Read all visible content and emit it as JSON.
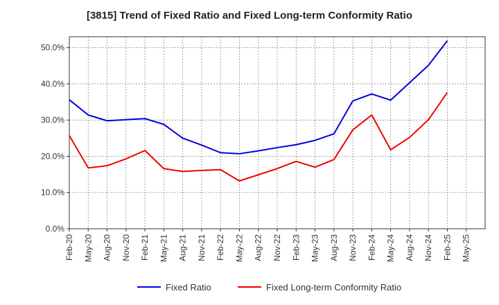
{
  "chart_data": {
    "type": "line",
    "title": "[3815]  Trend of Fixed Ratio and Fixed Long-term Conformity Ratio",
    "xlabel": "",
    "ylabel": "",
    "x": [
      "Feb-20",
      "May-20",
      "Aug-20",
      "Nov-20",
      "Feb-21",
      "May-21",
      "Aug-21",
      "Nov-21",
      "Feb-22",
      "May-22",
      "Aug-22",
      "Nov-22",
      "Feb-23",
      "May-23",
      "Aug-23",
      "Nov-23",
      "Feb-24",
      "May-24",
      "Aug-24",
      "Nov-24",
      "Feb-25",
      "May-25"
    ],
    "ylim": [
      0,
      53
    ],
    "yticks": [
      "0.0%",
      "10.0%",
      "20.0%",
      "30.0%",
      "40.0%",
      "50.0%"
    ],
    "grid": true,
    "legend_position": "bottom",
    "series": [
      {
        "name": "Fixed Ratio",
        "color": "#0000dd",
        "values": [
          35.6,
          31.4,
          29.8,
          30.1,
          30.4,
          28.8,
          25.0,
          23.1,
          21.0,
          20.7,
          21.5,
          22.4,
          23.2,
          24.4,
          26.2,
          35.3,
          37.2,
          35.5,
          40.3,
          45.1,
          51.9,
          null
        ]
      },
      {
        "name": "Fixed Long-term Conformity Ratio",
        "color": "#ee0000",
        "values": [
          25.7,
          16.8,
          17.4,
          19.3,
          21.6,
          16.6,
          15.8,
          16.1,
          16.3,
          13.2,
          14.9,
          16.6,
          18.6,
          17.0,
          19.1,
          27.3,
          31.4,
          21.8,
          25.2,
          30.1,
          37.6,
          null
        ]
      }
    ]
  }
}
